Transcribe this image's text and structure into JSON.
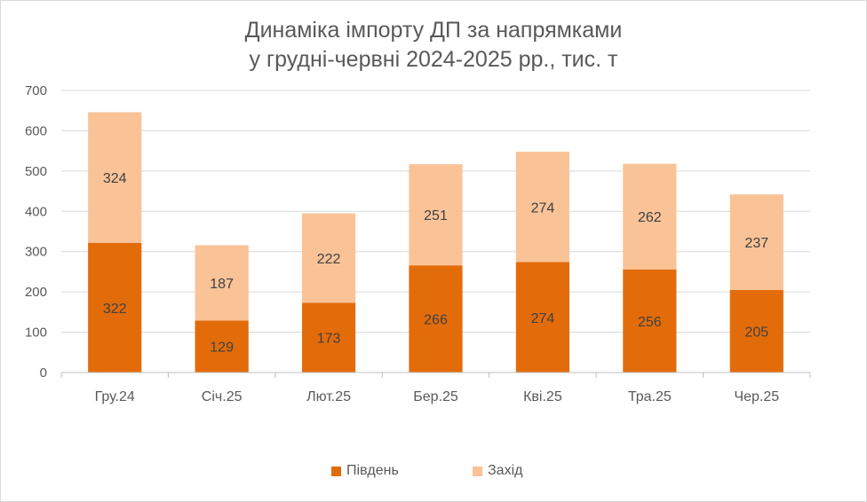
{
  "chart_data": {
    "type": "bar",
    "stacked": true,
    "title_lines": [
      "Динаміка імпорту ДП за напрямками",
      "у грудні-червні 2024-2025 рр., тис. т"
    ],
    "categories": [
      "Гру.24",
      "Січ.25",
      "Лют.25",
      "Бер.25",
      "Кві.25",
      "Тра.25",
      "Чер.25"
    ],
    "series": [
      {
        "name": "Південь",
        "color": "#E36C0A",
        "values": [
          322,
          129,
          173,
          266,
          274,
          256,
          205
        ]
      },
      {
        "name": "Захід",
        "color": "#F9C397",
        "values": [
          324,
          187,
          222,
          251,
          274,
          262,
          237
        ]
      }
    ],
    "ylim": [
      0,
      700
    ],
    "yticks": [
      0,
      100,
      200,
      300,
      400,
      500,
      600,
      700
    ],
    "grid": true,
    "legend_position": "bottom",
    "data_labels": true
  }
}
